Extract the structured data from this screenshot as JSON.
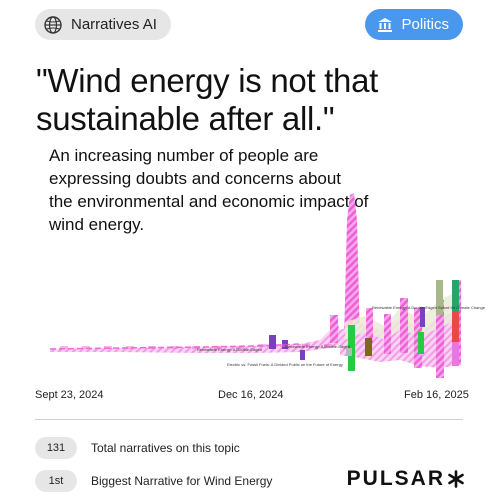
{
  "header": {
    "brand_label": "Narratives AI",
    "topic_label": "Politics"
  },
  "headline": {
    "quote": "\"Wind energy is not that sustainable after all.\"",
    "description": "An increasing number of people are expressing doubts and concerns about the environmental and economic impact of wind energy."
  },
  "chart_data": {
    "type": "area",
    "x_labels": [
      "Sept 23, 2024",
      "Dec 16, 2024",
      "Feb 16, 2025"
    ],
    "annotations": [
      "Renewable Energy: A Double-Edged Sword for Climate Change",
      "Renewable Energy: A Double-Edged",
      "Renewable Energy: A Double-Edged",
      "Electric vs. Fossil Fuels: A Divided Public on the Future of Energy"
    ],
    "colors": {
      "pink_striped": "#f06ad8",
      "green": "#22cc44",
      "purple": "#7a3fc2",
      "olive": "#a8b88a",
      "red": "#e84848",
      "teal": "#2aa36b"
    }
  },
  "timeline": {
    "start": "Sept 23, 2024",
    "mid": "Dec 16, 2024",
    "end": "Feb 16, 2025"
  },
  "stats": [
    {
      "value": "131",
      "label": "Total narratives on this topic"
    },
    {
      "value": "1st",
      "label": "Biggest Narrative for Wind Energy"
    }
  ],
  "footer": {
    "brand": "PULSAR"
  }
}
